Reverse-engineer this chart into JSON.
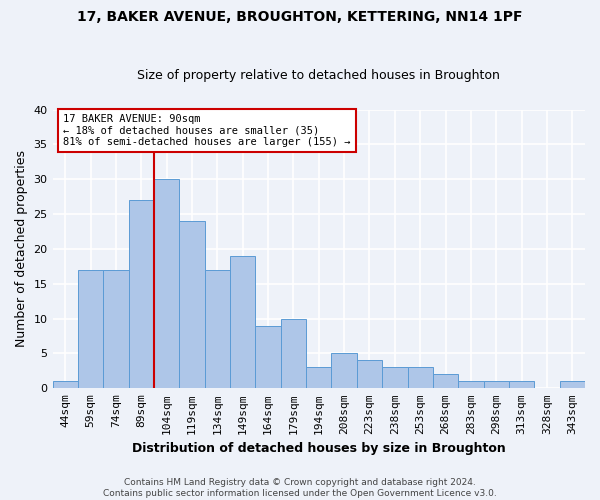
{
  "title1": "17, BAKER AVENUE, BROUGHTON, KETTERING, NN14 1PF",
  "title2": "Size of property relative to detached houses in Broughton",
  "xlabel": "Distribution of detached houses by size in Broughton",
  "ylabel": "Number of detached properties",
  "categories": [
    "44sqm",
    "59sqm",
    "74sqm",
    "89sqm",
    "104sqm",
    "119sqm",
    "134sqm",
    "149sqm",
    "164sqm",
    "179sqm",
    "194sqm",
    "208sqm",
    "223sqm",
    "238sqm",
    "253sqm",
    "268sqm",
    "283sqm",
    "298sqm",
    "313sqm",
    "328sqm",
    "343sqm"
  ],
  "values": [
    1,
    17,
    17,
    27,
    30,
    24,
    17,
    19,
    9,
    10,
    3,
    5,
    4,
    3,
    3,
    2,
    1,
    1,
    1,
    0,
    1
  ],
  "bar_color": "#aec6e8",
  "bar_edge_color": "#5b9bd5",
  "red_line_color": "#cc0000",
  "annotation_text": "17 BAKER AVENUE: 90sqm\n← 18% of detached houses are smaller (35)\n81% of semi-detached houses are larger (155) →",
  "annotation_box_color": "#ffffff",
  "annotation_box_edge": "#cc0000",
  "ylim": [
    0,
    40
  ],
  "yticks": [
    0,
    5,
    10,
    15,
    20,
    25,
    30,
    35,
    40
  ],
  "footnote": "Contains HM Land Registry data © Crown copyright and database right 2024.\nContains public sector information licensed under the Open Government Licence v3.0.",
  "bg_color": "#eef2f9",
  "plot_bg": "#eef2f9",
  "grid_color": "#ffffff",
  "title1_fontsize": 10,
  "title2_fontsize": 9,
  "ylabel_fontsize": 9,
  "xlabel_fontsize": 9,
  "tick_fontsize": 8,
  "footnote_fontsize": 6.5
}
